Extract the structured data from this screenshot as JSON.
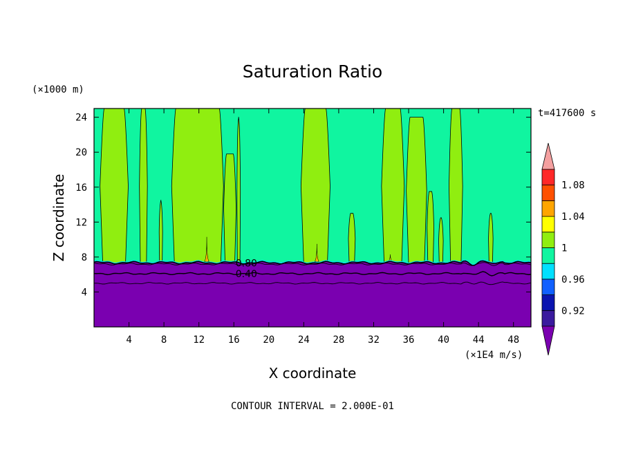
{
  "chart_data": {
    "type": "heatmap",
    "title": "Saturation Ratio",
    "xlabel": "X coordinate",
    "ylabel": "Z coordinate",
    "x_unit": "(×1E4 m/s)",
    "y_unit": "(×1000 m)",
    "time_label": "t=417600 s",
    "footer": "CONTOUR INTERVAL = 2.000E-01",
    "xlim": [
      0,
      50
    ],
    "ylim": [
      0,
      25
    ],
    "x_ticks": [
      4,
      8,
      12,
      16,
      20,
      24,
      28,
      32,
      36,
      40,
      44,
      48
    ],
    "y_ticks": [
      4,
      8,
      12,
      16,
      20,
      24
    ],
    "contour_labels": [
      {
        "text": "0.80",
        "x": 16.2,
        "y": 7.3
      },
      {
        "text": "0.40",
        "x": 16.2,
        "y": 6.1
      }
    ],
    "colorbar": {
      "levels": [
        0.9,
        0.92,
        0.94,
        0.96,
        0.98,
        1.0,
        1.02,
        1.04,
        1.06,
        1.08,
        1.1
      ],
      "colors": [
        "#3a1a9e",
        "#0a14b0",
        "#1060ff",
        "#00e0ff",
        "#10f5a0",
        "#90ee10",
        "#ffff00",
        "#ffa500",
        "#ff5000",
        "#ff2828"
      ],
      "under_color": "#7a00b0",
      "over_color": "#f4a0a0",
      "tick_labels": [
        "0.92",
        "0.96",
        "1",
        "1.04",
        "1.08"
      ],
      "tick_values": [
        0.92,
        0.96,
        1.0,
        1.04,
        1.08
      ]
    },
    "colors": {
      "background_field": "#10f5a0",
      "column_field": "#90ee10",
      "lower_field": "#7a00b0",
      "interface_band": "#00e0ff"
    },
    "field": {
      "interface_height": 7.5,
      "low_isolines": [
        7.2,
        6.1,
        5.0
      ],
      "columns": [
        {
          "x0": 1.0,
          "x1": 3.6,
          "ytop": 25
        },
        {
          "x0": 5.3,
          "x1": 6.0,
          "ytop": 25
        },
        {
          "x0": 7.5,
          "x1": 7.8,
          "ytop": 14.5
        },
        {
          "x0": 9.2,
          "x1": 14.5,
          "ytop": 25
        },
        {
          "x0": 15.0,
          "x1": 16.1,
          "ytop": 19.8
        },
        {
          "x0": 16.4,
          "x1": 16.7,
          "ytop": 24.0
        },
        {
          "x0": 24.0,
          "x1": 26.7,
          "ytop": 25
        },
        {
          "x0": 29.2,
          "x1": 29.8,
          "ytop": 13.0
        },
        {
          "x0": 33.2,
          "x1": 35.2,
          "ytop": 25
        },
        {
          "x0": 36.0,
          "x1": 37.8,
          "ytop": 24.0
        },
        {
          "x0": 38.2,
          "x1": 38.8,
          "ytop": 15.5
        },
        {
          "x0": 39.5,
          "x1": 39.9,
          "ytop": 12.5
        },
        {
          "x0": 40.8,
          "x1": 42.0,
          "ytop": 25
        },
        {
          "x0": 45.2,
          "x1": 45.6,
          "ytop": 13.0
        }
      ],
      "spikes": [
        {
          "x": 12.9,
          "height": 2.8,
          "width": 0.5
        },
        {
          "x": 25.5,
          "height": 2.0,
          "width": 0.45
        },
        {
          "x": 33.9,
          "height": 0.8,
          "width": 0.35
        }
      ]
    }
  }
}
